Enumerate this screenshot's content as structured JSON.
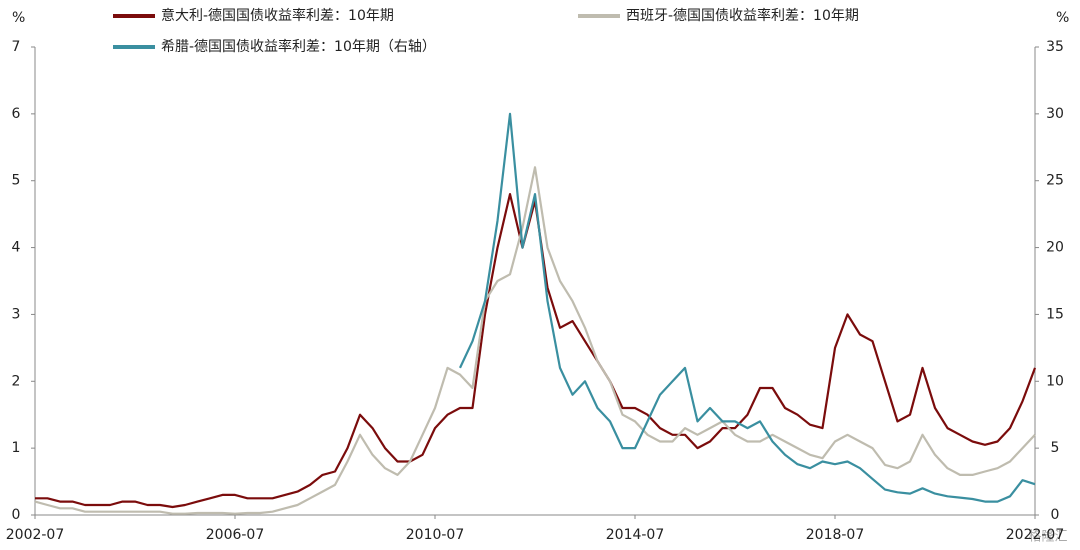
{
  "chart_data": {
    "type": "line",
    "y_unit": "%",
    "y2_unit": "%",
    "x": [
      "2002-07",
      "2002-10",
      "2003-01",
      "2003-04",
      "2003-07",
      "2003-10",
      "2004-01",
      "2004-04",
      "2004-07",
      "2004-10",
      "2005-01",
      "2005-04",
      "2005-07",
      "2005-10",
      "2006-01",
      "2006-04",
      "2006-07",
      "2006-10",
      "2007-01",
      "2007-04",
      "2007-07",
      "2007-10",
      "2008-01",
      "2008-04",
      "2008-07",
      "2008-10",
      "2009-01",
      "2009-04",
      "2009-07",
      "2009-10",
      "2010-01",
      "2010-04",
      "2010-07",
      "2010-10",
      "2011-01",
      "2011-04",
      "2011-07",
      "2011-10",
      "2012-01",
      "2012-04",
      "2012-07",
      "2012-10",
      "2013-01",
      "2013-04",
      "2013-07",
      "2013-10",
      "2014-01",
      "2014-04",
      "2014-07",
      "2014-10",
      "2015-01",
      "2015-04",
      "2015-07",
      "2015-10",
      "2016-01",
      "2016-04",
      "2016-07",
      "2016-10",
      "2017-01",
      "2017-04",
      "2017-07",
      "2017-10",
      "2018-01",
      "2018-04",
      "2018-07",
      "2018-10",
      "2019-01",
      "2019-04",
      "2019-07",
      "2019-10",
      "2020-01",
      "2020-04",
      "2020-07",
      "2020-10",
      "2021-01",
      "2021-04",
      "2021-07",
      "2021-10",
      "2022-01",
      "2022-04",
      "2022-07"
    ],
    "xticks": [
      "2002-07",
      "2006-07",
      "2010-07",
      "2014-07",
      "2018-07",
      "2022-07"
    ],
    "series": [
      {
        "name": "意大利-德国国债收益率利差：10年期",
        "color": "#7b0c0c",
        "axis": "y",
        "values": [
          0.25,
          0.25,
          0.2,
          0.2,
          0.15,
          0.15,
          0.15,
          0.2,
          0.2,
          0.15,
          0.15,
          0.12,
          0.15,
          0.2,
          0.25,
          0.3,
          0.3,
          0.25,
          0.25,
          0.25,
          0.3,
          0.35,
          0.45,
          0.6,
          0.65,
          1.0,
          1.5,
          1.3,
          1.0,
          0.8,
          0.8,
          0.9,
          1.3,
          1.5,
          1.6,
          1.6,
          3.0,
          4.0,
          4.8,
          4.0,
          4.7,
          3.4,
          2.8,
          2.9,
          2.6,
          2.3,
          2.0,
          1.6,
          1.6,
          1.5,
          1.3,
          1.2,
          1.2,
          1.0,
          1.1,
          1.3,
          1.3,
          1.5,
          1.9,
          1.9,
          1.6,
          1.5,
          1.35,
          1.3,
          2.5,
          3.0,
          2.7,
          2.6,
          2.0,
          1.4,
          1.5,
          2.2,
          1.6,
          1.3,
          1.2,
          1.1,
          1.05,
          1.1,
          1.3,
          1.7,
          2.2
        ]
      },
      {
        "name": "西班牙-德国国债收益率利差：10年期",
        "color": "#bfbcaf",
        "axis": "y",
        "values": [
          0.2,
          0.15,
          0.1,
          0.1,
          0.05,
          0.05,
          0.05,
          0.05,
          0.05,
          0.05,
          0.05,
          0.02,
          0.02,
          0.03,
          0.03,
          0.03,
          0.02,
          0.03,
          0.03,
          0.05,
          0.1,
          0.15,
          0.25,
          0.35,
          0.45,
          0.8,
          1.2,
          0.9,
          0.7,
          0.6,
          0.8,
          1.2,
          1.6,
          2.2,
          2.1,
          1.9,
          3.2,
          3.5,
          3.6,
          4.3,
          5.2,
          4.0,
          3.5,
          3.2,
          2.8,
          2.3,
          2.0,
          1.5,
          1.4,
          1.2,
          1.1,
          1.1,
          1.3,
          1.2,
          1.3,
          1.4,
          1.2,
          1.1,
          1.1,
          1.2,
          1.1,
          1.0,
          0.9,
          0.85,
          1.1,
          1.2,
          1.1,
          1.0,
          0.75,
          0.7,
          0.8,
          1.2,
          0.9,
          0.7,
          0.6,
          0.6,
          0.65,
          0.7,
          0.8,
          1.0,
          1.2
        ]
      },
      {
        "name": "希腊-德国国债收益率利差：10年期（右轴）",
        "color": "#3a8fa0",
        "axis": "y2",
        "values": [
          null,
          null,
          null,
          null,
          null,
          null,
          null,
          null,
          null,
          null,
          null,
          null,
          null,
          null,
          null,
          null,
          null,
          null,
          null,
          null,
          null,
          null,
          null,
          null,
          null,
          null,
          null,
          null,
          null,
          null,
          null,
          null,
          null,
          null,
          11,
          13,
          16,
          22,
          30,
          20,
          24,
          16,
          11,
          9,
          10,
          8,
          7,
          5,
          5,
          7,
          9,
          10,
          11,
          7,
          8,
          7,
          7,
          6.5,
          7,
          5.5,
          4.5,
          3.8,
          3.5,
          4.0,
          3.8,
          4.0,
          3.5,
          2.7,
          1.9,
          1.7,
          1.6,
          2.0,
          1.6,
          1.4,
          1.3,
          1.2,
          1.0,
          1.0,
          1.4,
          2.6,
          2.3
        ]
      }
    ],
    "ylim": [
      0,
      7
    ],
    "yticks": [
      0,
      1,
      2,
      3,
      4,
      5,
      6,
      7
    ],
    "y2lim": [
      0,
      35
    ],
    "y2ticks": [
      0,
      5,
      10,
      15,
      20,
      25,
      30,
      35
    ],
    "grid": false,
    "watermark": "格隆汇"
  }
}
